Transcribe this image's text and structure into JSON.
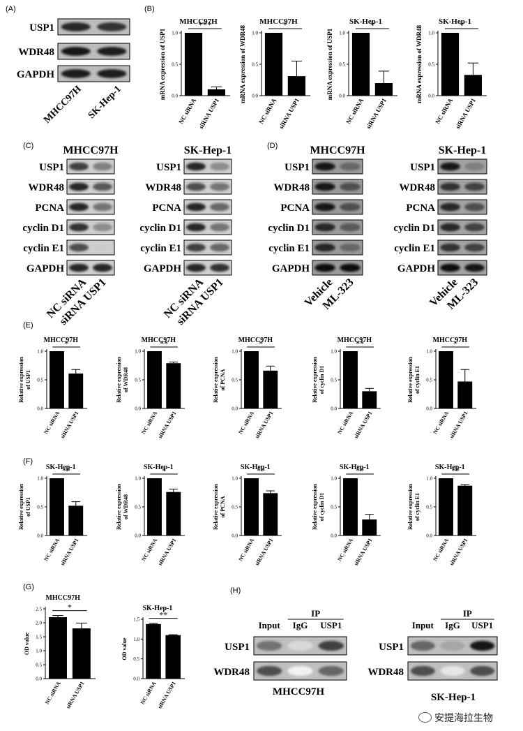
{
  "panels": {
    "A": {
      "label": "(A)",
      "bands": [
        "USP1",
        "WDR48",
        "GAPDH"
      ],
      "lanes": [
        "MHCC97H",
        "SK-Hep-1"
      ]
    },
    "B": {
      "label": "(B)"
    },
    "C": {
      "label": "(C)",
      "groups": [
        "MHCC97H",
        "SK-Hep-1"
      ],
      "bands": [
        "USP1",
        "WDR48",
        "PCNA",
        "cyclin D1",
        "cyclin E1",
        "GAPDH"
      ],
      "lanes": [
        "NC siRNA",
        "siRNA USP1"
      ]
    },
    "D": {
      "label": "(D)",
      "groups": [
        "MHCC97H",
        "SK-Hep-1"
      ],
      "bands": [
        "USP1",
        "WDR48",
        "PCNA",
        "cyclin D1",
        "cyclin E1",
        "GAPDH"
      ],
      "lanes": [
        "Vehicle",
        "ML-323"
      ]
    },
    "E": {
      "label": "(E)"
    },
    "F": {
      "label": "(F)"
    },
    "G": {
      "label": "(G)"
    },
    "H": {
      "label": "(H)",
      "ip": "IP",
      "lanes": [
        "Input",
        "IgG",
        "USP1"
      ],
      "bands": [
        "USP1",
        "WDR48"
      ],
      "cells": [
        "MHCC97H",
        "SK-Hep-1"
      ]
    }
  },
  "watermark": "安提海拉生物",
  "chart_data": [
    {
      "id": "B1",
      "type": "bar",
      "title": "MHCC97H",
      "categories": [
        "NC siRNA",
        "siRNA USP1"
      ],
      "values": [
        1.0,
        0.1
      ],
      "errors": [
        0,
        0.04
      ],
      "ylabel": "mRNA expression of USP1",
      "ylim": [
        0,
        1.0
      ],
      "ticks": [
        "0.0",
        "0.5",
        "1.0"
      ],
      "sig": "***"
    },
    {
      "id": "B2",
      "type": "bar",
      "title": "MHCC97H",
      "categories": [
        "NC siRNA",
        "siRNA USP1"
      ],
      "values": [
        1.0,
        0.31
      ],
      "errors": [
        0,
        0.24
      ],
      "ylabel": "mRNA expression of WDR48",
      "ylim": [
        0,
        1.0
      ],
      "ticks": [
        "0.0",
        "0.5",
        "1.0"
      ],
      "sig": "*"
    },
    {
      "id": "B3",
      "type": "bar",
      "title": "SK-Hep-1",
      "categories": [
        "NC siRNA",
        "siRNA USP1"
      ],
      "values": [
        1.0,
        0.2
      ],
      "errors": [
        0,
        0.19
      ],
      "ylabel": "mRNA expression of USP1",
      "ylim": [
        0,
        1.0
      ],
      "ticks": [
        "0.0",
        "0.5",
        "1.0"
      ],
      "sig": "*"
    },
    {
      "id": "B4",
      "type": "bar",
      "title": "SK-Hep-1",
      "categories": [
        "NC siRNA",
        "siRNA USP1"
      ],
      "values": [
        1.0,
        0.33
      ],
      "errors": [
        0,
        0.19
      ],
      "ylabel": "mRNA expression of WDR48",
      "ylim": [
        0,
        1.0
      ],
      "ticks": [
        "0.0",
        "0.5",
        "1.0"
      ],
      "sig": "*"
    },
    {
      "id": "E1",
      "type": "bar",
      "title": "MHCC97H",
      "categories": [
        "NC siRNA",
        "siRNA USP1"
      ],
      "values": [
        1.0,
        0.61
      ],
      "errors": [
        0,
        0.07
      ],
      "ylabel": "Relative expression\nof USP1",
      "ylim": [
        0,
        1.0
      ],
      "ticks": [
        "0.0",
        "0.5",
        "1.0"
      ],
      "sig": "*"
    },
    {
      "id": "E2",
      "type": "bar",
      "title": "MHCC97H",
      "categories": [
        "NC siRNA",
        "siRNA USP1"
      ],
      "values": [
        1.0,
        0.79
      ],
      "errors": [
        0,
        0.02
      ],
      "ylabel": "Relative expression\nof WDR48",
      "ylim": [
        0,
        1.0
      ],
      "ticks": [
        "0.0",
        "0.5",
        "1.0"
      ],
      "sig": "**"
    },
    {
      "id": "E3",
      "type": "bar",
      "title": "MHCC97H",
      "categories": [
        "NC siRNA",
        "siRNA USP1"
      ],
      "values": [
        1.0,
        0.66
      ],
      "errors": [
        0,
        0.08
      ],
      "ylabel": "Relative expression\nof PCNA",
      "ylim": [
        0,
        1.0
      ],
      "ticks": [
        "0.0",
        "0.5",
        "1.0"
      ],
      "sig": "*"
    },
    {
      "id": "E4",
      "type": "bar",
      "title": "MHCC97H",
      "categories": [
        "NC siRNA",
        "siRNA USP1"
      ],
      "values": [
        1.0,
        0.3
      ],
      "errors": [
        0,
        0.05
      ],
      "ylabel": "Relative expression\nof cyclin D1",
      "ylim": [
        0,
        1.0
      ],
      "ticks": [
        "0.0",
        "0.5",
        "1.0"
      ],
      "sig": "**"
    },
    {
      "id": "E5",
      "type": "bar",
      "title": "MHCC97H",
      "categories": [
        "NC siRNA",
        "siRNA USP1"
      ],
      "values": [
        1.0,
        0.47
      ],
      "errors": [
        0,
        0.21
      ],
      "ylabel": "Relative expression\nof cyclin E1",
      "ylim": [
        0,
        1.0
      ],
      "ticks": [
        "0.0",
        "0.5",
        "1.0"
      ],
      "sig": "*"
    },
    {
      "id": "F1",
      "type": "bar",
      "title": "SK-Hep-1",
      "categories": [
        "NC siRNA",
        "siRNA USP1"
      ],
      "values": [
        1.0,
        0.52
      ],
      "errors": [
        0,
        0.07
      ],
      "ylabel": "Relative expression\nof USP1",
      "ylim": [
        0,
        1.0
      ],
      "ticks": [
        "0.0",
        "0.5",
        "1.0"
      ],
      "sig": "**"
    },
    {
      "id": "F2",
      "type": "bar",
      "title": "SK-Hep-1",
      "categories": [
        "NC siRNA",
        "siRNA USP1"
      ],
      "values": [
        1.0,
        0.76
      ],
      "errors": [
        0,
        0.05
      ],
      "ylabel": "Relative expression\nof WDR48",
      "ylim": [
        0,
        1.0
      ],
      "ticks": [
        "0.0",
        "0.5",
        "1.0"
      ],
      "sig": "*"
    },
    {
      "id": "F3",
      "type": "bar",
      "title": "SK-Hep-1",
      "categories": [
        "NC siRNA",
        "siRNA USP1"
      ],
      "values": [
        1.0,
        0.74
      ],
      "errors": [
        0,
        0.04
      ],
      "ylabel": "Relative expression\nof PCNA",
      "ylim": [
        0,
        1.0
      ],
      "ticks": [
        "0.0",
        "0.5",
        "1.0"
      ],
      "sig": "**"
    },
    {
      "id": "F4",
      "type": "bar",
      "title": "SK-Hep-1",
      "categories": [
        "NC siRNA",
        "siRNA USP1"
      ],
      "values": [
        1.0,
        0.28
      ],
      "errors": [
        0,
        0.09
      ],
      "ylabel": "Relative expression\nof cyclin D1",
      "ylim": [
        0,
        1.0
      ],
      "ticks": [
        "0.0",
        "0.5",
        "1.0"
      ],
      "sig": "**"
    },
    {
      "id": "F5",
      "type": "bar",
      "title": "SK-Hep-1",
      "categories": [
        "NC siRNA",
        "siRNA USP1"
      ],
      "values": [
        1.0,
        0.87
      ],
      "errors": [
        0,
        0.02
      ],
      "ylabel": "Relative expression\nof cyclin E1",
      "ylim": [
        0,
        1.0
      ],
      "ticks": [
        "0.0",
        "0.5",
        "1.0"
      ],
      "sig": "**"
    },
    {
      "id": "G1",
      "type": "bar",
      "title": "MHCC97H",
      "categories": [
        "NC siRNA",
        "siRNA USP1"
      ],
      "values": [
        2.2,
        1.8
      ],
      "errors": [
        0.06,
        0.19
      ],
      "ylabel": "OD value",
      "ylim": [
        0,
        2.5
      ],
      "ticks": [
        "0.0",
        "0.5",
        "1.0",
        "1.5",
        "2.0",
        "2.5"
      ],
      "sig": "*"
    },
    {
      "id": "G2",
      "type": "bar",
      "title": "SK-Hep-1",
      "categories": [
        "NC siRNA",
        "siRNA USP1"
      ],
      "values": [
        1.38,
        1.1
      ],
      "errors": [
        0.02,
        0.01
      ],
      "ylabel": "OD value",
      "ylim": [
        0,
        1.5
      ],
      "ticks": [
        "0.0",
        "0.5",
        "1.0",
        "1.5"
      ],
      "sig": "**"
    }
  ]
}
